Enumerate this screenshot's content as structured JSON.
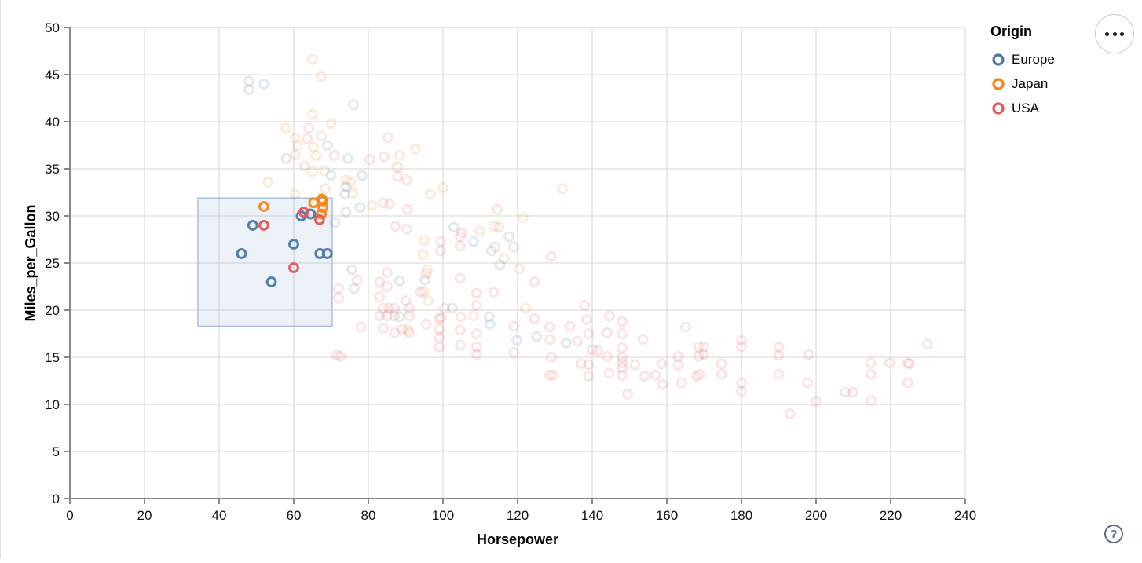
{
  "chart_data": {
    "type": "scatter",
    "title": "",
    "xlabel": "Horsepower",
    "ylabel": "Miles_per_Gallon",
    "xlim": [
      0,
      240
    ],
    "ylim": [
      0,
      50
    ],
    "xticks": [
      0,
      20,
      40,
      60,
      80,
      100,
      120,
      140,
      160,
      180,
      200,
      220,
      240
    ],
    "yticks": [
      0,
      5,
      10,
      15,
      20,
      25,
      30,
      35,
      40,
      45,
      50
    ],
    "grid": true,
    "legend": {
      "title": "Origin",
      "position": "top-right",
      "entries": [
        {
          "label": "Europe",
          "color": "#4c78a8"
        },
        {
          "label": "Japan",
          "color": "#f58518"
        },
        {
          "label": "USA",
          "color": "#e45756"
        }
      ]
    },
    "brush": {
      "x": [
        34.3,
        70.3
      ],
      "y": [
        18.3,
        31.9
      ],
      "fill": "rgba(130,160,215,0.14)",
      "stroke": "#a8bfe3"
    },
    "point_style": {
      "shape": "open-circle",
      "radius": 5.4,
      "stroke_width": 3.1,
      "selected_opacity": 0.95,
      "unselected_opacity": 0.16
    },
    "series": [
      {
        "name": "Europe",
        "color": "#4c78a8",
        "points": [
          [
            46,
            26
          ],
          [
            49,
            29
          ],
          [
            54,
            23
          ],
          [
            60,
            27
          ],
          [
            62,
            30
          ],
          [
            64.5,
            30.2
          ],
          [
            67,
            26
          ],
          [
            69,
            26
          ],
          [
            48,
            44.3
          ],
          [
            48,
            43.4
          ],
          [
            52,
            44
          ],
          [
            76,
            41.8
          ],
          [
            69,
            37.5
          ],
          [
            58,
            36.1
          ],
          [
            74.5,
            36.1
          ],
          [
            70,
            34.3
          ],
          [
            74,
            33.1
          ],
          [
            73.7,
            32.3
          ],
          [
            78.3,
            34.3
          ],
          [
            77.8,
            30.9
          ],
          [
            74,
            30.4
          ],
          [
            71,
            29.3
          ],
          [
            75.6,
            24.3
          ],
          [
            76.2,
            22.3
          ],
          [
            88.4,
            23.1
          ],
          [
            95.2,
            23.2
          ],
          [
            102.9,
            28.8
          ],
          [
            108.2,
            27.3
          ],
          [
            113,
            26.3
          ],
          [
            115.2,
            24.8
          ],
          [
            117.7,
            27.8
          ],
          [
            102.5,
            20.2
          ],
          [
            88.4,
            19.3
          ],
          [
            112.4,
            19.3
          ],
          [
            112.6,
            18.5
          ],
          [
            119.8,
            16.8
          ],
          [
            125.1,
            17.2
          ],
          [
            133,
            16.5
          ]
        ]
      },
      {
        "name": "Japan",
        "color": "#f58518",
        "points": [
          [
            52,
            31
          ],
          [
            65.3,
            31.4
          ],
          [
            67.8,
            31.6
          ],
          [
            67.8,
            30.9
          ],
          [
            67.4,
            30.2
          ],
          [
            67.5,
            31.8
          ],
          [
            65,
            46.6
          ],
          [
            67.4,
            44.8
          ],
          [
            65,
            40.8
          ],
          [
            70,
            39.8
          ],
          [
            57.9,
            39.3
          ],
          [
            60.4,
            38.3
          ],
          [
            67.4,
            38.5
          ],
          [
            61,
            37.5
          ],
          [
            65.3,
            37.3
          ],
          [
            60.4,
            36.5
          ],
          [
            66,
            36.4
          ],
          [
            88.4,
            36.4
          ],
          [
            92.6,
            37.1
          ],
          [
            53.1,
            33.6
          ],
          [
            65,
            34.7
          ],
          [
            68.2,
            34.8
          ],
          [
            75.2,
            33.6
          ],
          [
            74.1,
            33.8
          ],
          [
            68.4,
            32.9
          ],
          [
            60.4,
            32.3
          ],
          [
            96.6,
            32.3
          ],
          [
            100,
            33
          ],
          [
            75.8,
            32.4
          ],
          [
            81,
            31.1
          ],
          [
            132,
            32.9
          ],
          [
            109.9,
            28.4
          ],
          [
            113.7,
            28.9
          ],
          [
            121.5,
            29.8
          ],
          [
            95,
            27.4
          ],
          [
            94.7,
            25.9
          ],
          [
            95.8,
            24.3
          ],
          [
            94.9,
            22
          ],
          [
            90.5,
            17.9
          ],
          [
            116.4,
            25.5
          ],
          [
            120.4,
            24.4
          ],
          [
            122.1,
            20.2
          ],
          [
            108.2,
            19.4
          ],
          [
            96,
            21
          ]
        ]
      },
      {
        "name": "USA",
        "color": "#e45756",
        "points": [
          [
            52,
            29
          ],
          [
            60,
            24.5
          ],
          [
            62.7,
            30.4
          ],
          [
            66.9,
            29.6
          ],
          [
            62.9,
            35.3
          ],
          [
            63.6,
            38.2
          ],
          [
            64,
            39.3
          ],
          [
            70.9,
            36.4
          ],
          [
            80.4,
            36
          ],
          [
            84.2,
            36.3
          ],
          [
            85.3,
            38.3
          ],
          [
            87.8,
            35.2
          ],
          [
            87.8,
            34.2
          ],
          [
            90.3,
            33.8
          ],
          [
            84,
            31.4
          ],
          [
            85.7,
            31.3
          ],
          [
            90.5,
            30.7
          ],
          [
            114.5,
            30.7
          ],
          [
            87.2,
            28.9
          ],
          [
            90.3,
            28.6
          ],
          [
            72,
            21.3
          ],
          [
            72,
            22.3
          ],
          [
            71.5,
            15.2
          ],
          [
            72.5,
            15.1
          ],
          [
            77,
            23.2
          ],
          [
            78,
            18.2
          ],
          [
            83,
            23
          ],
          [
            85,
            24
          ],
          [
            85,
            22.5
          ],
          [
            83,
            21.4
          ],
          [
            84,
            20.2
          ],
          [
            85.5,
            20.2
          ],
          [
            87,
            20.2
          ],
          [
            83,
            19.4
          ],
          [
            85,
            19.4
          ],
          [
            87,
            19.4
          ],
          [
            84,
            18.1
          ],
          [
            87,
            17.6
          ],
          [
            89,
            18
          ],
          [
            91,
            19.4
          ],
          [
            91,
            20.2
          ],
          [
            90,
            21
          ],
          [
            91,
            17.6
          ],
          [
            95.5,
            23.9
          ],
          [
            94,
            21.9
          ],
          [
            95.5,
            18.5
          ],
          [
            99.4,
            27.3
          ],
          [
            99.4,
            26.3
          ],
          [
            105,
            28.2
          ],
          [
            99,
            19.1
          ],
          [
            99.5,
            19.2
          ],
          [
            99,
            18
          ],
          [
            99,
            17.1
          ],
          [
            99,
            16.1
          ],
          [
            100.4,
            20.2
          ],
          [
            104.6,
            27.8
          ],
          [
            104.6,
            26.8
          ],
          [
            104.6,
            23.4
          ],
          [
            104.8,
            19.3
          ],
          [
            104.6,
            17.9
          ],
          [
            104.6,
            16.3
          ],
          [
            109,
            21.8
          ],
          [
            109,
            20.5
          ],
          [
            109,
            17.5
          ],
          [
            109,
            16.1
          ],
          [
            109,
            15.3
          ],
          [
            113.6,
            21.9
          ],
          [
            115,
            28.8
          ],
          [
            114,
            26.7
          ],
          [
            119,
            26.7
          ],
          [
            119,
            18.3
          ],
          [
            119,
            15.5
          ],
          [
            124.5,
            23
          ],
          [
            124.5,
            19.1
          ],
          [
            128.6,
            16.9
          ],
          [
            128.6,
            18.2
          ],
          [
            129,
            15
          ],
          [
            128.6,
            13.1
          ],
          [
            129.5,
            13.1
          ],
          [
            129,
            25.7
          ],
          [
            134,
            18.3
          ],
          [
            136,
            16.7
          ],
          [
            137,
            14.3
          ],
          [
            138,
            20.5
          ],
          [
            138.5,
            19
          ],
          [
            139,
            17.5
          ],
          [
            139,
            14.2
          ],
          [
            139,
            13
          ],
          [
            140,
            15.8
          ],
          [
            141.5,
            15.7
          ],
          [
            144,
            17.6
          ],
          [
            144.6,
            19.4
          ],
          [
            144,
            15.1
          ],
          [
            144.5,
            13.3
          ],
          [
            148,
            18.8
          ],
          [
            148,
            17.5
          ],
          [
            148,
            16
          ],
          [
            148,
            15
          ],
          [
            148,
            14.4
          ],
          [
            148,
            13.9
          ],
          [
            148,
            13.1
          ],
          [
            149.5,
            11.1
          ],
          [
            151.5,
            14.2
          ],
          [
            153.6,
            16.9
          ],
          [
            154,
            13
          ],
          [
            157,
            13.1
          ],
          [
            158.6,
            14.3
          ],
          [
            158.8,
            12.1
          ],
          [
            163,
            15.1
          ],
          [
            163,
            14.2
          ],
          [
            164,
            12.3
          ],
          [
            165,
            18.2
          ],
          [
            168,
            13
          ],
          [
            168.5,
            16.1
          ],
          [
            168.5,
            15.1
          ],
          [
            169.9,
            16.1
          ],
          [
            169.9,
            15.3
          ],
          [
            168.8,
            13.2
          ],
          [
            174.7,
            14.3
          ],
          [
            174.7,
            13.2
          ],
          [
            180,
            16.8
          ],
          [
            180,
            16.1
          ],
          [
            180,
            12.3
          ],
          [
            180,
            11.4
          ],
          [
            190,
            16.1
          ],
          [
            190,
            15.2
          ],
          [
            190,
            13.2
          ],
          [
            193,
            9
          ],
          [
            197.7,
            12.3
          ],
          [
            198,
            15.3
          ],
          [
            200,
            10.3
          ],
          [
            207.8,
            11.3
          ],
          [
            209.9,
            11.3
          ],
          [
            214.7,
            14.4
          ],
          [
            214.7,
            13.2
          ],
          [
            214.7,
            10.4
          ],
          [
            219.8,
            14.4
          ],
          [
            224.6,
            14.4
          ],
          [
            225,
            14.3
          ],
          [
            224.6,
            12.3
          ],
          [
            229.9,
            16.4
          ]
        ]
      }
    ]
  },
  "controls": {
    "menu_button": {
      "icon": "ellipsis",
      "tooltip": ""
    },
    "help_button": {
      "icon": "question-mark",
      "label": "?"
    }
  }
}
